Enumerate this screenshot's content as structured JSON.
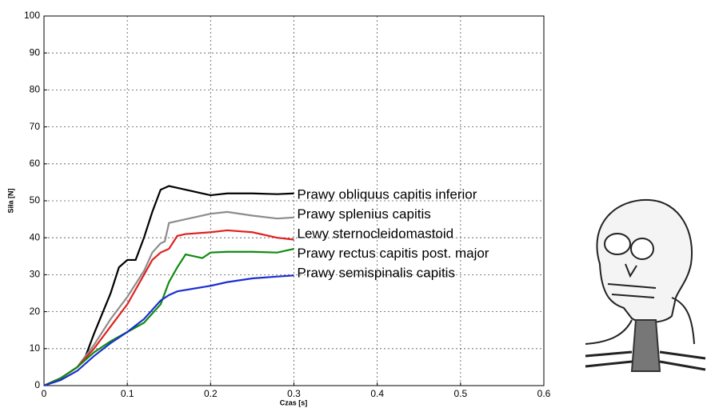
{
  "chart_data": {
    "type": "line",
    "x_label": "Czas [s]",
    "y_label": "Siła [N]",
    "xlim": [
      0,
      0.6
    ],
    "xticks": [
      0,
      0.1,
      0.2,
      0.3,
      0.4,
      0.5,
      0.6
    ],
    "ylim": [
      0,
      100
    ],
    "yticks": [
      0,
      10,
      20,
      30,
      40,
      50,
      60,
      70,
      80,
      90,
      100
    ],
    "grid": true,
    "series": [
      {
        "name": "Prawy obliquus capitis inferior",
        "color": "#000000",
        "x": [
          0,
          0.02,
          0.04,
          0.05,
          0.06,
          0.08,
          0.09,
          0.1,
          0.11,
          0.12,
          0.13,
          0.14,
          0.15,
          0.16,
          0.18,
          0.2,
          0.22,
          0.25,
          0.28,
          0.3
        ],
        "values": [
          0,
          2,
          5,
          8,
          14,
          25,
          32,
          34,
          34,
          40,
          47,
          53,
          54,
          53.5,
          52.5,
          51.5,
          52,
          52,
          51.8,
          52
        ]
      },
      {
        "name": "Prawy splenius capitis",
        "color": "#8c8c8c",
        "x": [
          0,
          0.02,
          0.04,
          0.06,
          0.08,
          0.1,
          0.12,
          0.13,
          0.14,
          0.145,
          0.15,
          0.17,
          0.2,
          0.22,
          0.25,
          0.28,
          0.3
        ],
        "values": [
          0,
          2,
          5,
          11,
          18,
          24,
          31,
          36,
          38.5,
          39,
          44,
          45,
          46.5,
          47,
          46,
          45.2,
          45.5
        ]
      },
      {
        "name": "Lewy sternocleidomastoid",
        "color": "#e02020",
        "x": [
          0,
          0.02,
          0.04,
          0.06,
          0.08,
          0.1,
          0.12,
          0.13,
          0.14,
          0.15,
          0.16,
          0.17,
          0.2,
          0.22,
          0.25,
          0.28,
          0.3
        ],
        "values": [
          0,
          2,
          5,
          10,
          16,
          22,
          30,
          34,
          36,
          37,
          40.5,
          41,
          41.5,
          42,
          41.5,
          40,
          39.5
        ]
      },
      {
        "name": "Prawy rectus capitis post. major",
        "color": "#108a10",
        "x": [
          0,
          0.02,
          0.04,
          0.06,
          0.08,
          0.1,
          0.12,
          0.14,
          0.15,
          0.16,
          0.17,
          0.18,
          0.19,
          0.2,
          0.22,
          0.25,
          0.28,
          0.3
        ],
        "values": [
          0,
          2,
          5,
          9,
          12,
          14.5,
          17,
          22,
          28,
          32,
          35.5,
          35,
          34.5,
          36,
          36.2,
          36.2,
          36,
          37
        ]
      },
      {
        "name": "Prawy semispinalis capitis",
        "color": "#1a2fd0",
        "x": [
          0,
          0.02,
          0.04,
          0.06,
          0.08,
          0.1,
          0.12,
          0.14,
          0.15,
          0.16,
          0.2,
          0.22,
          0.25,
          0.28,
          0.3
        ],
        "values": [
          0,
          1.5,
          4,
          8,
          11.5,
          14.5,
          18,
          23,
          24.5,
          25.5,
          27,
          28,
          29,
          29.5,
          29.8
        ]
      }
    ]
  }
}
